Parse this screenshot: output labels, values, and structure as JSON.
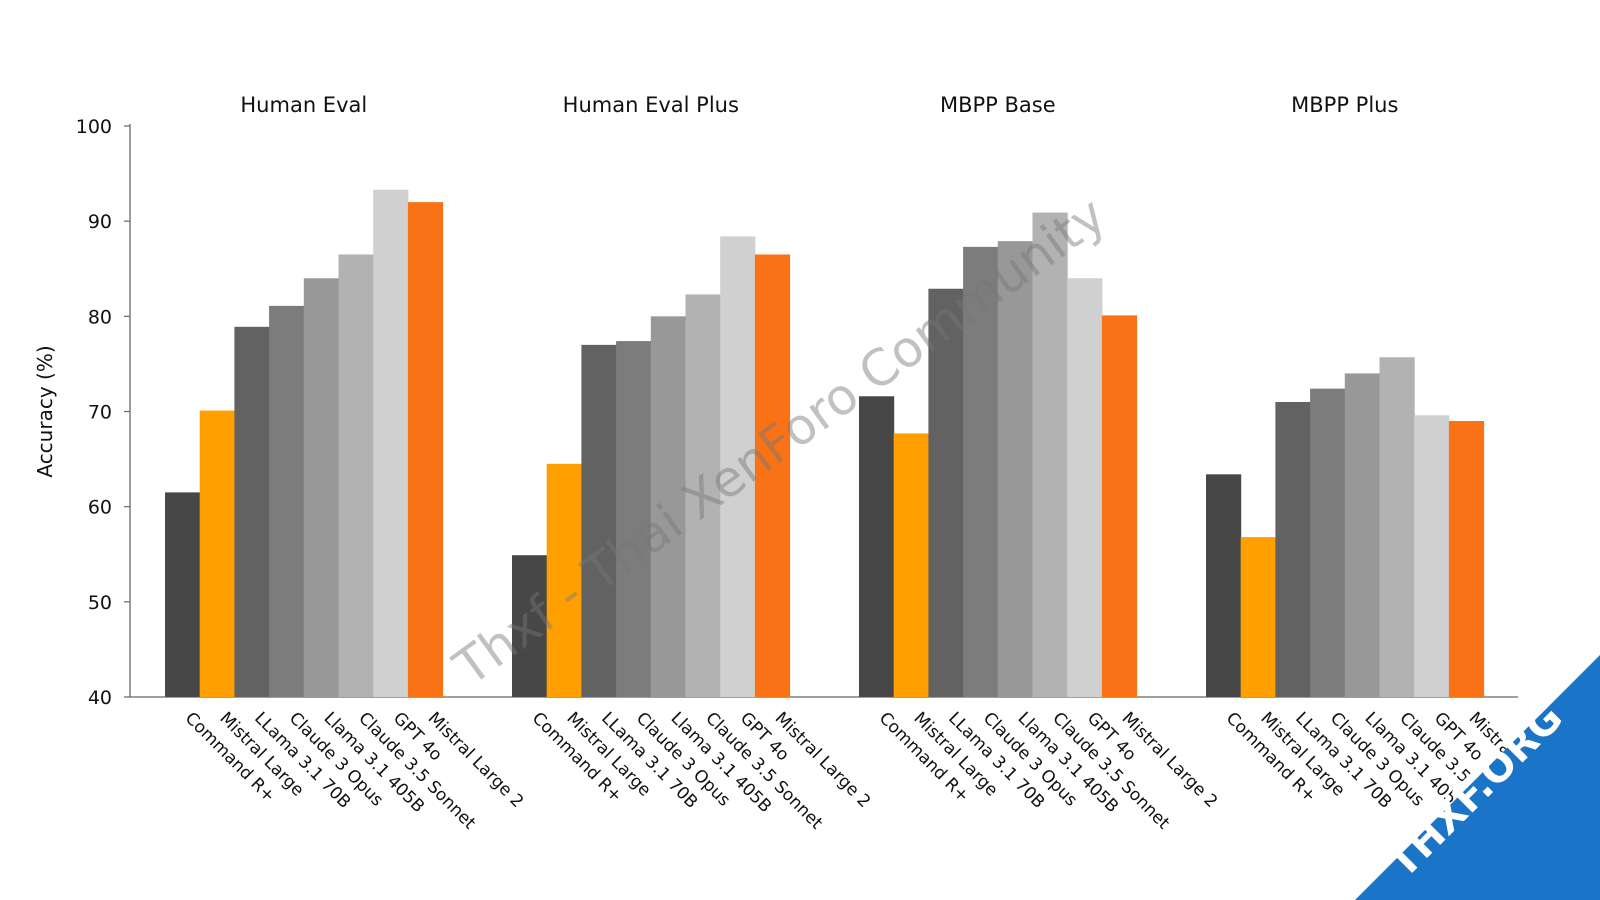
{
  "chart_data": {
    "type": "bar",
    "ylabel": "Accuracy (%)",
    "ylim": [
      40,
      100
    ],
    "yticks": [
      40,
      50,
      60,
      70,
      80,
      90,
      100
    ],
    "grid": false,
    "series_names": [
      "Command R+",
      "Mistral Large",
      "LLama 3.1 70B",
      "Claude 3 Opus",
      "Llama 3.1 405B",
      "Claude 3.5 Sonnet",
      "GPT 4o",
      "Mistral Large 2"
    ],
    "colors": [
      "#474747",
      "#ffa000",
      "#626262",
      "#7c7c7c",
      "#989898",
      "#b2b2b2",
      "#d0d0d0",
      "#f97316"
    ],
    "panels": [
      {
        "title": "Human Eval",
        "values": [
          61.5,
          70.1,
          78.9,
          81.1,
          84.0,
          86.5,
          93.3,
          92.0
        ]
      },
      {
        "title": "Human Eval Plus",
        "values": [
          54.9,
          64.5,
          77.0,
          77.4,
          80.0,
          82.3,
          88.4,
          86.5
        ]
      },
      {
        "title": "MBPP Base",
        "values": [
          71.6,
          67.7,
          82.9,
          87.3,
          87.9,
          90.9,
          84.0,
          80.1
        ]
      },
      {
        "title": "MBPP Plus",
        "values": [
          63.4,
          56.8,
          71.0,
          72.4,
          74.0,
          75.7,
          69.6,
          69.0
        ]
      }
    ]
  },
  "watermark": "Thxf - Thai XenForo Community",
  "badge": "THXF.ORG"
}
